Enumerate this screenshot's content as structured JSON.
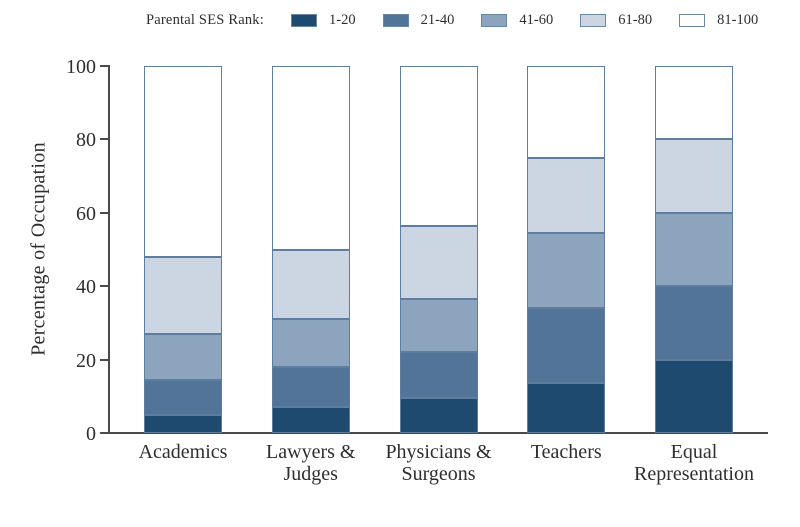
{
  "legend": {
    "title": "Parental SES Rank:"
  },
  "chart_data": {
    "type": "bar",
    "stacked": true,
    "title": "",
    "xlabel": "",
    "ylabel": "Percentage of Occupation",
    "ylim": [
      0,
      100
    ],
    "yticks": [
      0,
      20,
      40,
      60,
      80,
      100
    ],
    "grid": false,
    "legend_position": "top",
    "categories": [
      "Academics",
      "Lawyers &\nJudges",
      "Physicians &\nSurgeons",
      "Teachers",
      "Equal\nRepresentation"
    ],
    "series": [
      {
        "name": "1-20",
        "color": "#1e4a70",
        "values": [
          5,
          7,
          9.5,
          13.5,
          20
        ]
      },
      {
        "name": "21-40",
        "color": "#527499",
        "values": [
          9.5,
          11,
          12.5,
          20.5,
          20
        ]
      },
      {
        "name": "41-60",
        "color": "#8ca4be",
        "values": [
          12.5,
          13,
          14.5,
          20.5,
          20
        ]
      },
      {
        "name": "61-80",
        "color": "#cbd6e2",
        "values": [
          21,
          19,
          20,
          20.5,
          20
        ]
      },
      {
        "name": "81-100",
        "color": "#ffffff",
        "values": [
          52,
          50,
          43.5,
          25,
          20
        ]
      }
    ],
    "cumulative_tops": {
      "Academics": [
        5,
        14.5,
        27,
        48,
        100
      ],
      "Lawyers & Judges": [
        7,
        18,
        31,
        50,
        100
      ],
      "Physicians & Surgeons": [
        9.5,
        22,
        36.5,
        56.5,
        100
      ],
      "Teachers": [
        13.5,
        34,
        54.5,
        75,
        100
      ],
      "Equal Representation": [
        20,
        40,
        60,
        80,
        100
      ]
    },
    "colors": {
      "segment_border": "#5d7e9c",
      "axis": "#4a4a4a",
      "text": "#2e2e2e"
    }
  }
}
